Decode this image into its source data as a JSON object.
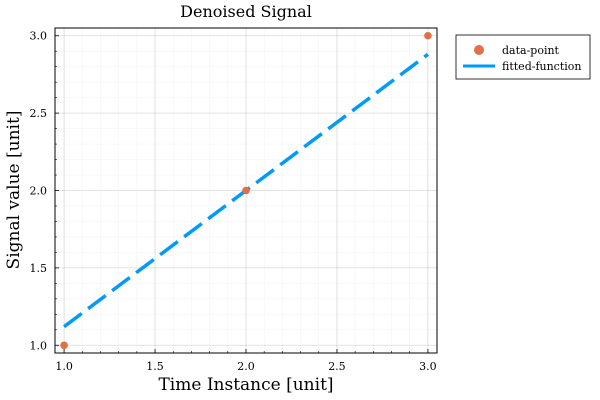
{
  "chart_data": {
    "type": "scatter",
    "title": "Denoised Signal",
    "xlabel": "Time Instance [unit]",
    "ylabel": "Signal value [unit]",
    "xlim": [
      0.95,
      3.05
    ],
    "ylim": [
      0.95,
      3.05
    ],
    "xticks": [
      1.0,
      1.5,
      2.0,
      2.5,
      3.0
    ],
    "yticks": [
      1.0,
      1.5,
      2.0,
      2.5,
      3.0
    ],
    "xtick_labels": [
      "1.0",
      "1.5",
      "2.0",
      "2.5",
      "3.0"
    ],
    "ytick_labels": [
      "1.0",
      "1.5",
      "2.0",
      "2.5",
      "3.0"
    ],
    "grid": true,
    "minor_grid": true,
    "legend_position": "outside-top-right",
    "series": [
      {
        "name": "data-point",
        "kind": "scatter",
        "color": "#e26f46",
        "x": [
          1.0,
          2.0,
          3.0
        ],
        "y": [
          1.0,
          2.0,
          3.0
        ]
      },
      {
        "name": "fitted-function",
        "kind": "line",
        "style": "dashed",
        "color": "#009af9",
        "x": [
          1.0,
          3.0
        ],
        "y": [
          1.12,
          2.88
        ]
      }
    ]
  }
}
